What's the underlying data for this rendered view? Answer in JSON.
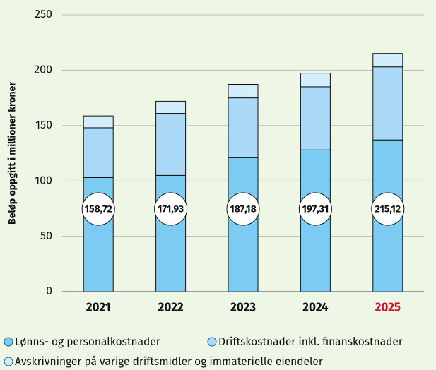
{
  "chart_data": {
    "type": "stacked_bar",
    "y_label": "Beløp oppgitt i millioner kroner",
    "categories": [
      "2021",
      "2022",
      "2023",
      "2024",
      "2025"
    ],
    "category_label_colors": [
      "#111111",
      "#111111",
      "#111111",
      "#111111",
      "#c8102e"
    ],
    "series": [
      {
        "name": "Lønns- og personalkostnader",
        "color": "#7ccbf2",
        "values": [
          103,
          105,
          121,
          128,
          137
        ]
      },
      {
        "name": "Driftskostnader inkl. finanskostnader",
        "color": "#a9d9f6",
        "values": [
          45,
          56,
          54,
          57,
          66
        ]
      },
      {
        "name": "Avskrivninger på varige driftsmidler og immaterielle eiendeler",
        "color": "#d4edfb",
        "values": [
          10.72,
          10.93,
          12.18,
          12.31,
          12.12
        ]
      }
    ],
    "totals": [
      158.72,
      171.93,
      187.18,
      197.31,
      215.12
    ],
    "total_labels": [
      "158,72",
      "171,93",
      "187,18",
      "197,31",
      "215,12"
    ],
    "ylim": [
      0,
      250
    ],
    "yticks": [
      0,
      50,
      100,
      150,
      200,
      250
    ],
    "grid": true
  }
}
